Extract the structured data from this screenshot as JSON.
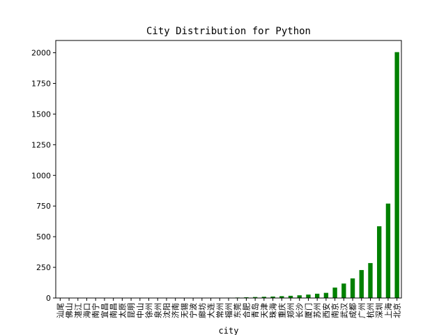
{
  "chart_data": {
    "type": "bar",
    "title": "City Distribution for Python",
    "xlabel": "city",
    "ylabel": "",
    "ylim": [
      0,
      2100
    ],
    "yticks": [
      0,
      250,
      500,
      750,
      1000,
      1250,
      1500,
      1750,
      2000
    ],
    "bar_color": "#008000",
    "grid": false,
    "categories": [
      "汕尾",
      "佛山",
      "湛江",
      "海口",
      "南宁",
      "宜昌",
      "南昌",
      "太原",
      "昆明",
      "中山",
      "徐州",
      "泉州",
      "沈阳",
      "济南",
      "无锡",
      "宁波",
      "廊坊",
      "大连",
      "常州",
      "福州",
      "东莞",
      "合肥",
      "青岛",
      "天津",
      "珠海",
      "重庆",
      "郑州",
      "长沙",
      "厦门",
      "苏州",
      "西安",
      "南京",
      "武汉",
      "成都",
      "广州",
      "杭州",
      "深圳",
      "上海",
      "北京"
    ],
    "values": [
      0,
      0,
      0,
      0,
      0,
      0,
      0,
      0,
      0,
      0,
      0,
      0,
      0,
      0,
      0,
      0,
      1,
      2,
      2,
      3,
      4,
      6,
      8,
      10,
      12,
      15,
      18,
      22,
      28,
      35,
      42,
      85,
      118,
      160,
      228,
      285,
      585,
      770,
      2005
    ]
  }
}
